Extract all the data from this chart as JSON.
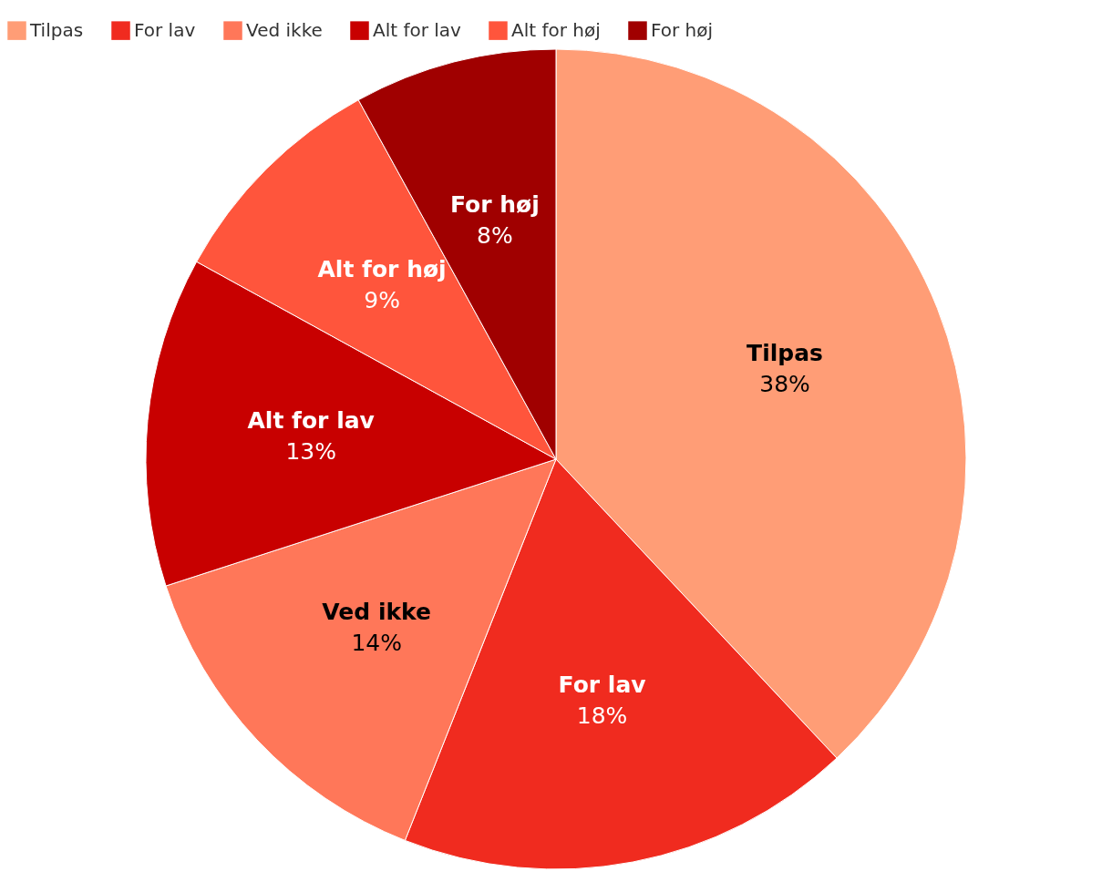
{
  "chart_data": {
    "type": "pie",
    "categories": [
      "Tilpas",
      "For lav",
      "Ved ikke",
      "Alt for lav",
      "Alt for høj",
      "For høj"
    ],
    "values": [
      38,
      18,
      14,
      13,
      9,
      8
    ],
    "colors": [
      "#ff9d76",
      "#f02b1f",
      "#ff7759",
      "#c80000",
      "#ff553c",
      "#a00000"
    ],
    "value_labels": [
      "38%",
      "18%",
      "14%",
      "13%",
      "9%",
      "8%"
    ],
    "legend": "top left"
  }
}
